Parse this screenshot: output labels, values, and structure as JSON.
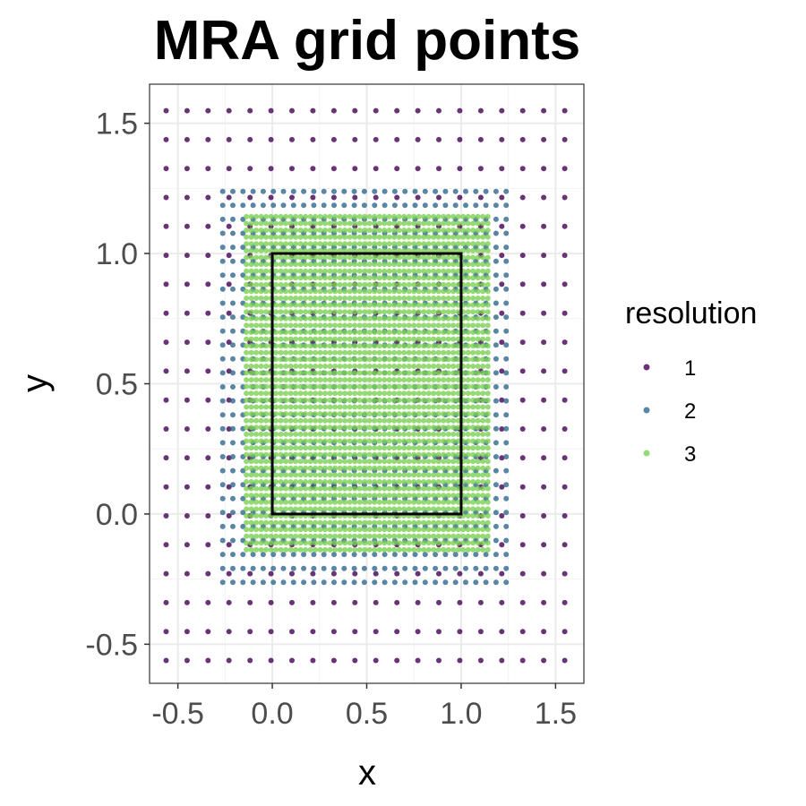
{
  "chart_data": {
    "type": "scatter",
    "title": "MRA grid points",
    "xlabel": "x",
    "ylabel": "y",
    "xlim": [
      -0.65,
      1.65
    ],
    "ylim": [
      -0.65,
      1.65
    ],
    "xticks": [
      -0.5,
      0.0,
      0.5,
      1.0,
      1.5
    ],
    "yticks": [
      -0.5,
      0.0,
      0.5,
      1.0,
      1.5
    ],
    "xtick_labels": [
      "-0.5",
      "0.0",
      "0.5",
      "1.0",
      "1.5"
    ],
    "ytick_labels": [
      "-0.5",
      "0.0",
      "0.5",
      "1.0",
      "1.5"
    ],
    "grid": true,
    "legend": {
      "title": "resolution",
      "placement": "right"
    },
    "series": [
      {
        "name": "1",
        "color": "#440154",
        "grid_x": {
          "start": -0.5625,
          "step": 0.1111,
          "count": 20
        },
        "grid_y": {
          "start": -0.5625,
          "step": 0.1111,
          "count": 20
        }
      },
      {
        "name": "2",
        "color": "#31688E",
        "grid_x": {
          "start": -0.2625,
          "step": 0.0536,
          "count": 29
        },
        "grid_y": {
          "start": -0.2625,
          "step": 0.0536,
          "count": 29
        }
      },
      {
        "name": "3",
        "color": "#7AD151",
        "grid_x": {
          "start": -0.1375,
          "step": 0.0261,
          "count": 50
        },
        "grid_y": {
          "start": -0.1375,
          "step": 0.0261,
          "count": 50
        }
      }
    ],
    "annotations": [
      {
        "type": "rect",
        "x": [
          0,
          1
        ],
        "y": [
          0,
          1
        ],
        "color": "#000000"
      }
    ]
  }
}
